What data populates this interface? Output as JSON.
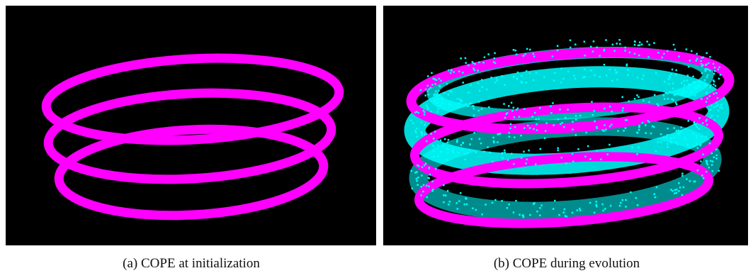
{
  "figures": [
    {
      "caption": "(a) COPE at initialization"
    },
    {
      "caption": "(b) COPE during evolution"
    }
  ]
}
